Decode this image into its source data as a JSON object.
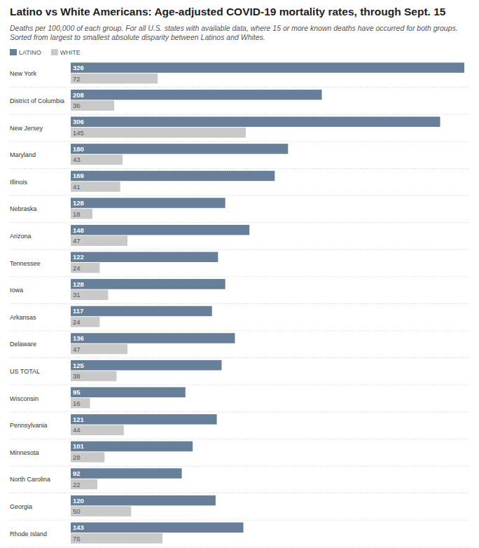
{
  "chart_data": {
    "type": "bar",
    "orientation": "horizontal",
    "title": "Latino vs White Americans: Age-adjusted COVID-19 mortality rates, through Sept. 15",
    "subtitle": "Deaths per 100,000 of each group. For all U.S. states with available data, where 15 or more known deaths have occurred for both groups. Sorted from largest to smallest absolute disparity between Latinos and Whites.",
    "categories": [
      "New York",
      "District of Columbia",
      "New Jersey",
      "Maryland",
      "Illinois",
      "Nebraska",
      "Arizona",
      "Tennessee",
      "Iowa",
      "Arkansas",
      "Delaware",
      "US TOTAL",
      "Wisconsin",
      "Pennsylvania",
      "Minnesota",
      "North Carolina",
      "Georgia",
      "Rhode Island"
    ],
    "series": [
      {
        "name": "LATINO",
        "color": "#687f9a",
        "values": [
          326,
          208,
          306,
          180,
          169,
          128,
          148,
          122,
          128,
          117,
          136,
          125,
          95,
          121,
          101,
          92,
          120,
          143
        ]
      },
      {
        "name": "WHITE",
        "color": "#c9c9c9",
        "values": [
          72,
          36,
          145,
          43,
          41,
          18,
          47,
          24,
          31,
          24,
          47,
          38,
          16,
          44,
          28,
          22,
          50,
          76
        ]
      }
    ],
    "xlim": [
      0,
      326
    ],
    "tick_labels": false,
    "grid": false,
    "data_labels": true,
    "legend": "top-left"
  }
}
